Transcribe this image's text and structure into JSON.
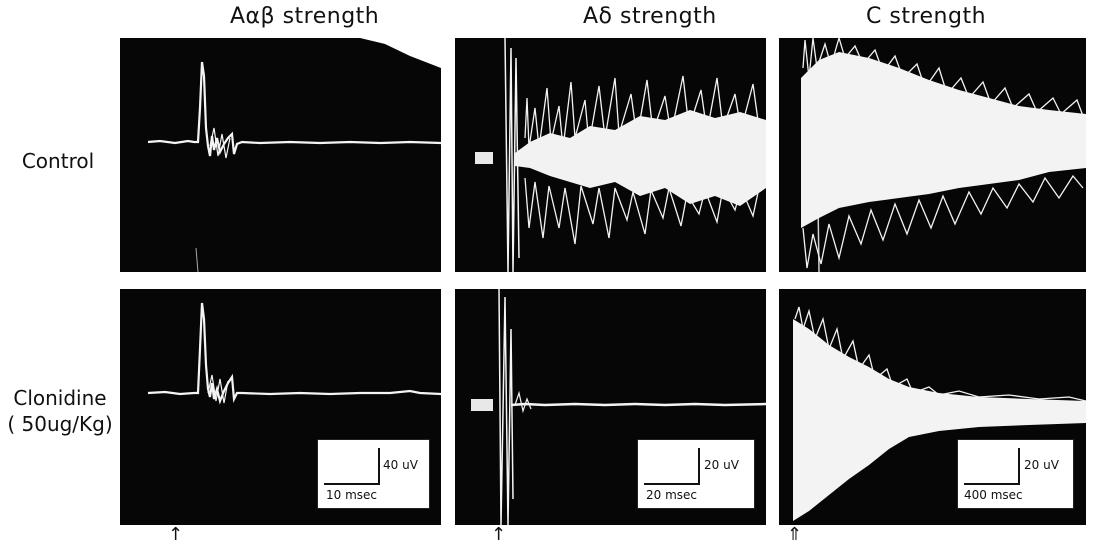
{
  "columns": [
    {
      "title": "Aαβ strength"
    },
    {
      "title": "Aδ strength"
    },
    {
      "title": "C strength"
    }
  ],
  "rows": [
    {
      "label_line1": "Control",
      "label_line2": ""
    },
    {
      "label_line1": "Clonidine",
      "label_line2": "( 50ug/Kg)"
    }
  ],
  "scale_bars": [
    {
      "amplitude": "40 uV",
      "time": "10 msec"
    },
    {
      "amplitude": "20 uV",
      "time": "20 msec"
    },
    {
      "amplitude": "20 uV",
      "time": "400 msec"
    }
  ],
  "stimulus_markers": [
    "↑",
    "↑",
    "⇑"
  ],
  "colors": {
    "background": "#ffffff",
    "oscilloscope": "#060606",
    "trace": "#f4f4f4"
  }
}
